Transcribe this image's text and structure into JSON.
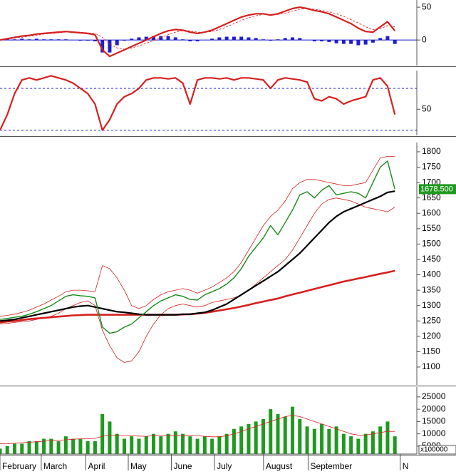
{
  "chart_data": [
    {
      "type": "macd",
      "xlim": [
        0,
        57
      ],
      "ylim": [
        -39,
        61
      ],
      "yticks": [
        50,
        0
      ],
      "zero_line": true,
      "series": [
        {
          "type": "bar",
          "color": "#1f1fc8",
          "values": [
            0,
            1,
            1,
            2,
            1,
            2,
            1,
            1,
            1,
            1,
            0,
            -1,
            -1,
            -2,
            -19,
            -19,
            -8,
            -1,
            2,
            4,
            5,
            6,
            6,
            6,
            4,
            1,
            -2,
            -2,
            0,
            2,
            4,
            5,
            5,
            5,
            4,
            3,
            1,
            -1,
            1,
            3,
            4,
            3,
            0,
            -2,
            -2,
            -3,
            -5,
            -6,
            -6,
            -8,
            -7,
            -4,
            3,
            6,
            -6
          ]
        },
        {
          "type": "line",
          "color": "#d62020",
          "width": 2.2,
          "values": [
            0,
            2,
            4,
            6,
            7,
            9,
            10,
            11,
            12,
            13,
            12,
            11,
            10,
            8,
            -15,
            -25,
            -20,
            -15,
            -10,
            -5,
            0,
            5,
            10,
            14,
            16,
            15,
            12,
            10,
            12,
            15,
            20,
            25,
            30,
            35,
            38,
            40,
            40,
            38,
            40,
            44,
            48,
            50,
            48,
            45,
            43,
            40,
            35,
            30,
            25,
            18,
            13,
            12,
            20,
            28,
            14
          ]
        },
        {
          "type": "line",
          "color": "#d62020",
          "width": 0.8,
          "dash": true,
          "values": [
            0,
            1,
            3,
            4,
            6,
            7,
            9,
            10,
            11,
            12,
            12,
            12,
            11,
            10,
            4,
            -6,
            -12,
            -14,
            -12,
            -9,
            -5,
            -1,
            4,
            8,
            12,
            14,
            14,
            12,
            12,
            13,
            16,
            20,
            25,
            30,
            34,
            37,
            39,
            39,
            39,
            41,
            44,
            47,
            48,
            47,
            45,
            43,
            40,
            36,
            31,
            26,
            20,
            16,
            17,
            22,
            20
          ]
        }
      ]
    },
    {
      "type": "rsi",
      "xlim": [
        0,
        57
      ],
      "ylim": [
        25,
        87
      ],
      "yticks": [
        50
      ],
      "levels": [
        70,
        30
      ],
      "series": [
        {
          "type": "line",
          "color": "#d62020",
          "width": 2.2,
          "values": [
            30,
            45,
            65,
            78,
            80,
            78,
            80,
            82,
            80,
            78,
            75,
            70,
            65,
            55,
            30,
            40,
            55,
            62,
            65,
            70,
            78,
            80,
            80,
            79,
            80,
            75,
            55,
            78,
            80,
            80,
            79,
            80,
            78,
            80,
            80,
            79,
            78,
            70,
            78,
            80,
            79,
            78,
            76,
            60,
            58,
            62,
            60,
            55,
            58,
            60,
            62,
            78,
            80,
            72,
            45
          ]
        }
      ]
    },
    {
      "type": "price",
      "xlim": [
        0,
        57
      ],
      "ylim": [
        1042,
        1830
      ],
      "yticks": [
        1800,
        1750,
        1700,
        1650,
        1600,
        1550,
        1500,
        1450,
        1400,
        1350,
        1300,
        1250,
        1200,
        1150,
        1100
      ],
      "price_tag": {
        "value": 1678.5,
        "label": "1678.500"
      },
      "series": [
        {
          "type": "line",
          "color": "#d62020",
          "width": 0.8,
          "values": [
            1265,
            1268,
            1272,
            1278,
            1285,
            1295,
            1305,
            1318,
            1330,
            1345,
            1350,
            1350,
            1348,
            1345,
            1430,
            1420,
            1390,
            1350,
            1300,
            1290,
            1300,
            1320,
            1335,
            1345,
            1350,
            1355,
            1350,
            1340,
            1350,
            1360,
            1375,
            1390,
            1410,
            1440,
            1480,
            1520,
            1560,
            1590,
            1610,
            1640,
            1680,
            1700,
            1710,
            1710,
            1705,
            1700,
            1695,
            1690,
            1690,
            1695,
            1700,
            1740,
            1780,
            1785,
            1785
          ]
        },
        {
          "type": "line",
          "color": "#d62020",
          "width": 0.8,
          "values": [
            1240,
            1242,
            1245,
            1248,
            1250,
            1255,
            1260,
            1265,
            1275,
            1290,
            1300,
            1310,
            1315,
            1300,
            1220,
            1170,
            1130,
            1115,
            1120,
            1150,
            1200,
            1240,
            1270,
            1290,
            1300,
            1305,
            1300,
            1295,
            1300,
            1310,
            1315,
            1320,
            1325,
            1335,
            1350,
            1370,
            1390,
            1410,
            1430,
            1450,
            1480,
            1520,
            1560,
            1600,
            1630,
            1645,
            1650,
            1645,
            1640,
            1630,
            1620,
            1615,
            1610,
            1605,
            1620
          ]
        },
        {
          "type": "line",
          "color": "#d62020",
          "width": 2.6,
          "values": [
            1245,
            1248,
            1250,
            1253,
            1256,
            1258,
            1260,
            1262,
            1264,
            1266,
            1268,
            1269,
            1270,
            1270,
            1270,
            1270,
            1270,
            1270,
            1270,
            1270,
            1270,
            1270,
            1270,
            1270,
            1270,
            1271,
            1272,
            1274,
            1276,
            1280,
            1284,
            1288,
            1292,
            1297,
            1302,
            1308,
            1313,
            1318,
            1323,
            1330,
            1336,
            1342,
            1348,
            1354,
            1360,
            1366,
            1372,
            1378,
            1383,
            1388,
            1393,
            1398,
            1403,
            1408,
            1413
          ]
        },
        {
          "type": "line",
          "color": "#000000",
          "width": 2.2,
          "values": [
            1250,
            1252,
            1255,
            1260,
            1265,
            1270,
            1275,
            1280,
            1285,
            1290,
            1295,
            1298,
            1300,
            1295,
            1290,
            1285,
            1280,
            1278,
            1275,
            1272,
            1270,
            1270,
            1270,
            1270,
            1270,
            1272,
            1272,
            1275,
            1278,
            1285,
            1295,
            1305,
            1320,
            1335,
            1350,
            1365,
            1380,
            1395,
            1410,
            1430,
            1450,
            1470,
            1495,
            1520,
            1545,
            1570,
            1590,
            1605,
            1615,
            1625,
            1635,
            1645,
            1655,
            1668,
            1672
          ]
        },
        {
          "type": "line",
          "color": "#1a8a1a",
          "width": 1.4,
          "values": [
            1255,
            1258,
            1262,
            1265,
            1272,
            1280,
            1290,
            1300,
            1315,
            1330,
            1335,
            1332,
            1330,
            1325,
            1230,
            1210,
            1215,
            1230,
            1240,
            1260,
            1280,
            1300,
            1315,
            1325,
            1335,
            1330,
            1320,
            1318,
            1335,
            1345,
            1355,
            1370,
            1390,
            1420,
            1460,
            1490,
            1520,
            1560,
            1530,
            1570,
            1610,
            1660,
            1670,
            1650,
            1675,
            1690,
            1660,
            1665,
            1670,
            1665,
            1650,
            1700,
            1750,
            1770,
            1678.5
          ]
        }
      ]
    },
    {
      "type": "volume",
      "xlim": [
        0,
        57
      ],
      "ylim": [
        1800,
        29000
      ],
      "yticks": [
        25000,
        20000,
        15000,
        10000,
        5000
      ],
      "unit_label": "x100000",
      "xticks": [
        {
          "value": 1.46,
          "label": "February"
        },
        {
          "value": 7.1,
          "label": "March"
        },
        {
          "value": 13.2,
          "label": "April"
        },
        {
          "value": 19,
          "label": "May"
        },
        {
          "value": 24.9,
          "label": "June"
        },
        {
          "value": 30.8,
          "label": "July"
        },
        {
          "value": 37.5,
          "label": "August"
        },
        {
          "value": 43.6,
          "label": "September"
        },
        {
          "value": 56.2,
          "label": "N"
        }
      ],
      "series": [
        {
          "type": "bar",
          "color": "#1f9a1f",
          "values": [
            4000,
            5000,
            6000,
            6000,
            7000,
            7000,
            8000,
            8000,
            7000,
            9000,
            8000,
            8000,
            7000,
            7000,
            18000,
            15000,
            10000,
            8000,
            9000,
            8000,
            9000,
            10000,
            9000,
            10000,
            11000,
            10000,
            9000,
            8000,
            9000,
            8000,
            9000,
            10000,
            12000,
            13000,
            14000,
            15000,
            16000,
            20000,
            18000,
            17000,
            21000,
            16000,
            13000,
            12000,
            14000,
            12000,
            13000,
            10000,
            9000,
            8000,
            10000,
            11000,
            13000,
            15000,
            9000
          ]
        },
        {
          "type": "line",
          "color": "#d62020",
          "width": 0.8,
          "values": [
            6000,
            6000,
            6200,
            6400,
            6600,
            6800,
            7000,
            7200,
            7400,
            7600,
            7800,
            8000,
            8000,
            8200,
            9000,
            9500,
            9500,
            9300,
            9200,
            9100,
            9000,
            9200,
            9300,
            9400,
            9500,
            9500,
            9400,
            9200,
            9000,
            8800,
            8800,
            9200,
            10000,
            11000,
            12000,
            13000,
            14000,
            15000,
            16000,
            17000,
            17500,
            17000,
            16000,
            15000,
            14000,
            13000,
            12000,
            11000,
            10000,
            9500,
            9500,
            10000,
            10500,
            11000,
            11000
          ]
        }
      ]
    }
  ]
}
